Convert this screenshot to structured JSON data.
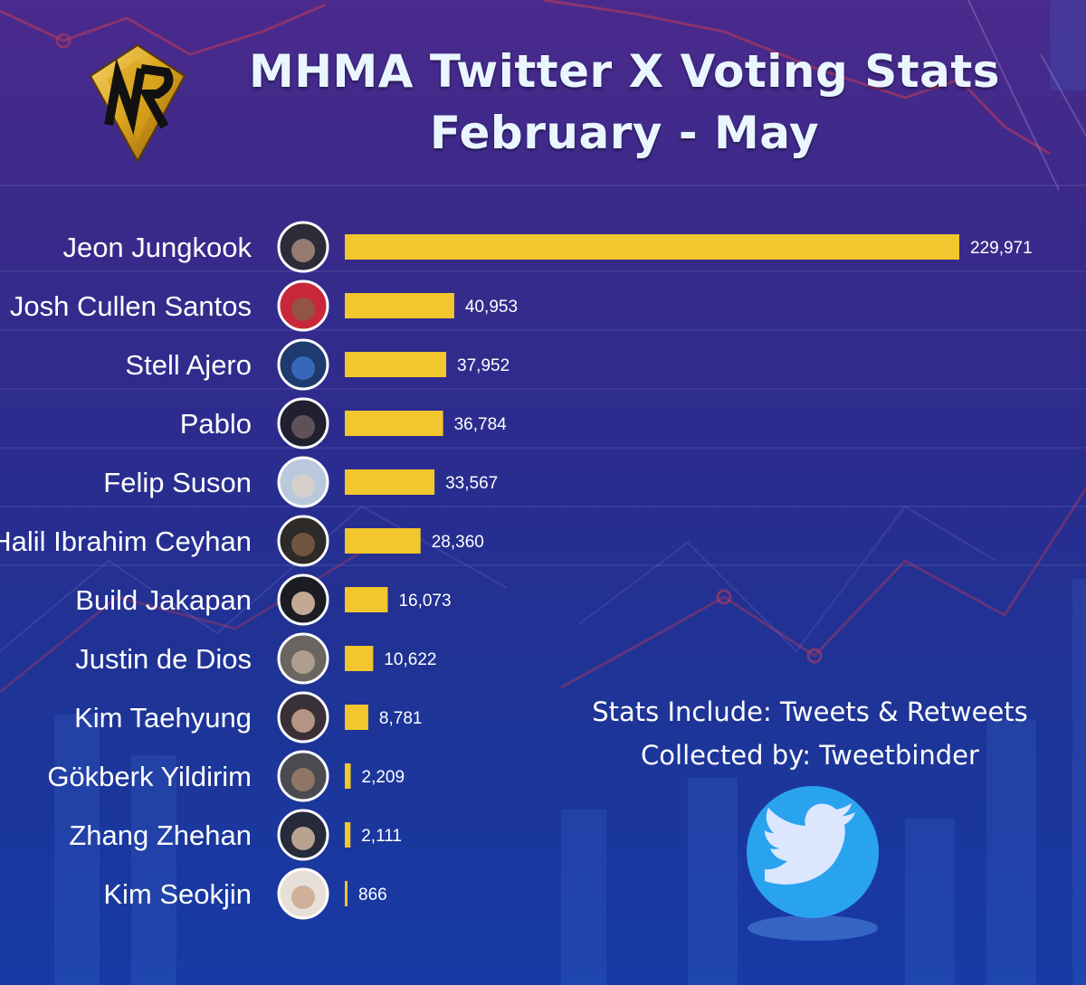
{
  "header": {
    "title_line1": "MHMA Twitter X Voting Stats",
    "title_line2": "February - May"
  },
  "notes": {
    "line1": "Stats Include: Tweets & Retweets",
    "line2": "Collected by: Tweetbinder"
  },
  "colors": {
    "bar": "#f2c62d",
    "text": "#ffffff",
    "title": "#eaf6ff",
    "background_top": "#4a2a8c",
    "background_bottom": "#173aa6",
    "logo_gold": "#d9a21c",
    "bird_circle": "#2aa3ef"
  },
  "icons": [
    "nr-logo-icon",
    "twitter-bird-icon",
    "avatar-photo-icon"
  ],
  "chart_data": {
    "type": "bar",
    "orientation": "horizontal",
    "title": "MHMA Twitter X Voting Stats February - May",
    "xlabel": "",
    "ylabel": "",
    "grid": false,
    "legend": "none",
    "xlim": [
      0,
      229971
    ],
    "categories": [
      "Jeon Jungkook",
      "Josh Cullen Santos",
      "Stell Ajero",
      "Pablo",
      "Felip Suson",
      "Halil Ibrahim Ceyhan",
      "Build Jakapan",
      "Justin de Dios",
      "Kim Taehyung",
      "Gökberk Yildirim",
      "Zhang Zhehan",
      "Kim Seokjin"
    ],
    "values": [
      229971,
      40953,
      37952,
      36784,
      33567,
      28360,
      16073,
      10622,
      8781,
      2209,
      2111,
      866
    ],
    "value_labels": [
      "229,971",
      "40,953",
      "37,952",
      "36,784",
      "33,567",
      "28,360",
      "16,073",
      "10,622",
      "8,781",
      "2,209",
      "2,111",
      "866"
    ]
  }
}
